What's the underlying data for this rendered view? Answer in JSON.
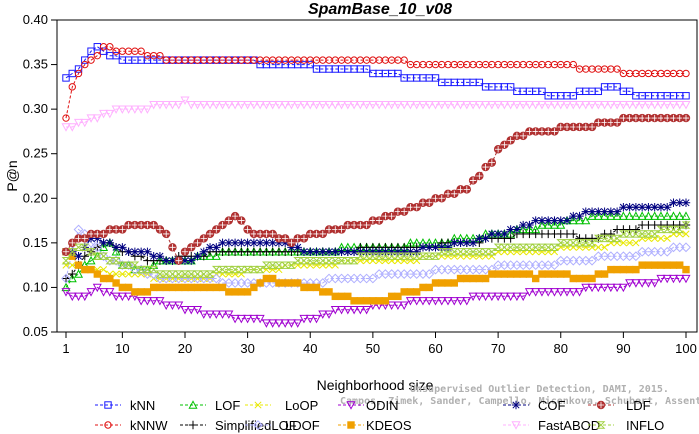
{
  "chart_data": {
    "type": "line",
    "title": "SpamBase_10_v08",
    "xlabel": "Neighborhood size",
    "ylabel": "P@n",
    "xlim": [
      1,
      100
    ],
    "ylim": [
      0.05,
      0.4
    ],
    "xticks": [
      1,
      10,
      20,
      30,
      40,
      50,
      60,
      70,
      80,
      90,
      100
    ],
    "yticks": [
      0.05,
      0.1,
      0.15,
      0.2,
      0.25,
      0.3,
      0.35,
      0.4
    ],
    "ytick_labels": [
      "0.05",
      "0.10",
      "0.15",
      "0.20",
      "0.25",
      "0.30",
      "0.35",
      "0.40"
    ],
    "grid": false,
    "legend_position": "bottom",
    "credit": [
      "Campos, Zimek, Sander, Campello, Micenkova, Schubert, Assent, Houle",
      "Unsupervised Outlier Detection, DAMI, 2015."
    ],
    "series": [
      {
        "name": "kNN",
        "color": "#1a1aff",
        "marker": "square",
        "points": [
          [
            1,
            0.333
          ],
          [
            3,
            0.345
          ],
          [
            5,
            0.363
          ],
          [
            6,
            0.371
          ],
          [
            8,
            0.362
          ],
          [
            10,
            0.357
          ],
          [
            15,
            0.354
          ],
          [
            20,
            0.353
          ],
          [
            30,
            0.353
          ],
          [
            35,
            0.351
          ],
          [
            40,
            0.348
          ],
          [
            45,
            0.345
          ],
          [
            50,
            0.342
          ],
          [
            55,
            0.337
          ],
          [
            60,
            0.333
          ],
          [
            65,
            0.329
          ],
          [
            70,
            0.326
          ],
          [
            75,
            0.318
          ],
          [
            80,
            0.317
          ],
          [
            85,
            0.318
          ],
          [
            88,
            0.325
          ],
          [
            90,
            0.322
          ],
          [
            93,
            0.315
          ],
          [
            97,
            0.316
          ],
          [
            100,
            0.314
          ]
        ]
      },
      {
        "name": "kNNW",
        "color": "#e01010",
        "marker": "circle",
        "points": [
          [
            1,
            0.288
          ],
          [
            2,
            0.327
          ],
          [
            4,
            0.35
          ],
          [
            6,
            0.36
          ],
          [
            7,
            0.368
          ],
          [
            10,
            0.367
          ],
          [
            13,
            0.364
          ],
          [
            15,
            0.359
          ],
          [
            20,
            0.355
          ],
          [
            30,
            0.355
          ],
          [
            40,
            0.354
          ],
          [
            50,
            0.353
          ],
          [
            60,
            0.352
          ],
          [
            70,
            0.35
          ],
          [
            80,
            0.348
          ],
          [
            88,
            0.346
          ],
          [
            90,
            0.341
          ],
          [
            100,
            0.34
          ]
        ]
      },
      {
        "name": "LOF",
        "color": "#00c000",
        "marker": "triangle",
        "points": [
          [
            1,
            0.1
          ],
          [
            3,
            0.115
          ],
          [
            5,
            0.13
          ],
          [
            8,
            0.15
          ],
          [
            10,
            0.125
          ],
          [
            13,
            0.118
          ],
          [
            16,
            0.128
          ],
          [
            20,
            0.13
          ],
          [
            25,
            0.137
          ],
          [
            30,
            0.14
          ],
          [
            35,
            0.138
          ],
          [
            40,
            0.14
          ],
          [
            45,
            0.143
          ],
          [
            50,
            0.145
          ],
          [
            55,
            0.147
          ],
          [
            60,
            0.15
          ],
          [
            65,
            0.155
          ],
          [
            70,
            0.16
          ],
          [
            75,
            0.165
          ],
          [
            80,
            0.172
          ],
          [
            85,
            0.178
          ],
          [
            90,
            0.18
          ],
          [
            95,
            0.18
          ],
          [
            100,
            0.182
          ]
        ]
      },
      {
        "name": "SimplifiedLOF",
        "color": "#000000",
        "marker": "plus",
        "points": [
          [
            1,
            0.108
          ],
          [
            3,
            0.125
          ],
          [
            5,
            0.14
          ],
          [
            7,
            0.152
          ],
          [
            9,
            0.145
          ],
          [
            12,
            0.135
          ],
          [
            15,
            0.128
          ],
          [
            18,
            0.132
          ],
          [
            22,
            0.135
          ],
          [
            25,
            0.14
          ],
          [
            30,
            0.138
          ],
          [
            35,
            0.138
          ],
          [
            40,
            0.14
          ],
          [
            45,
            0.142
          ],
          [
            50,
            0.143
          ],
          [
            55,
            0.145
          ],
          [
            60,
            0.147
          ],
          [
            65,
            0.15
          ],
          [
            70,
            0.155
          ],
          [
            75,
            0.16
          ],
          [
            80,
            0.16
          ],
          [
            85,
            0.155
          ],
          [
            90,
            0.165
          ],
          [
            95,
            0.17
          ],
          [
            100,
            0.172
          ]
        ]
      },
      {
        "name": "LoOP",
        "color": "#e8e800",
        "marker": "x",
        "points": [
          [
            1,
            0.125
          ],
          [
            5,
            0.12
          ],
          [
            10,
            0.115
          ],
          [
            15,
            0.112
          ],
          [
            20,
            0.11
          ],
          [
            25,
            0.113
          ],
          [
            30,
            0.118
          ],
          [
            35,
            0.122
          ],
          [
            40,
            0.125
          ],
          [
            45,
            0.128
          ],
          [
            50,
            0.13
          ],
          [
            55,
            0.132
          ],
          [
            60,
            0.133
          ],
          [
            65,
            0.135
          ],
          [
            70,
            0.138
          ],
          [
            75,
            0.14
          ],
          [
            80,
            0.143
          ],
          [
            85,
            0.145
          ],
          [
            90,
            0.15
          ],
          [
            95,
            0.155
          ],
          [
            100,
            0.16
          ]
        ]
      },
      {
        "name": "LDOF",
        "color": "#b0b0ff",
        "marker": "diamond",
        "points": [
          [
            1,
            0.11
          ],
          [
            3,
            0.165
          ],
          [
            5,
            0.15
          ],
          [
            8,
            0.13
          ],
          [
            12,
            0.12
          ],
          [
            16,
            0.112
          ],
          [
            20,
            0.11
          ],
          [
            25,
            0.108
          ],
          [
            30,
            0.105
          ],
          [
            35,
            0.103
          ],
          [
            40,
            0.105
          ],
          [
            45,
            0.11
          ],
          [
            50,
            0.112
          ],
          [
            55,
            0.115
          ],
          [
            60,
            0.118
          ],
          [
            65,
            0.12
          ],
          [
            70,
            0.123
          ],
          [
            75,
            0.125
          ],
          [
            80,
            0.128
          ],
          [
            85,
            0.132
          ],
          [
            90,
            0.135
          ],
          [
            95,
            0.14
          ],
          [
            100,
            0.145
          ]
        ]
      },
      {
        "name": "ODIN",
        "color": "#a000d0",
        "marker": "triangle-down",
        "points": [
          [
            1,
            0.095
          ],
          [
            3,
            0.088
          ],
          [
            6,
            0.098
          ],
          [
            8,
            0.093
          ],
          [
            12,
            0.088
          ],
          [
            15,
            0.085
          ],
          [
            18,
            0.08
          ],
          [
            20,
            0.075
          ],
          [
            25,
            0.07
          ],
          [
            30,
            0.065
          ],
          [
            35,
            0.06
          ],
          [
            38,
            0.062
          ],
          [
            42,
            0.068
          ],
          [
            45,
            0.075
          ],
          [
            50,
            0.078
          ],
          [
            55,
            0.082
          ],
          [
            60,
            0.085
          ],
          [
            65,
            0.087
          ],
          [
            70,
            0.09
          ],
          [
            75,
            0.093
          ],
          [
            80,
            0.096
          ],
          [
            85,
            0.098
          ],
          [
            90,
            0.102
          ],
          [
            95,
            0.107
          ],
          [
            100,
            0.111
          ]
        ]
      },
      {
        "name": "KDEOS",
        "color": "#f0a000",
        "marker": "square-filled",
        "points": [
          [
            1,
            0.14
          ],
          [
            3,
            0.125
          ],
          [
            6,
            0.115
          ],
          [
            9,
            0.105
          ],
          [
            12,
            0.095
          ],
          [
            15,
            0.098
          ],
          [
            18,
            0.102
          ],
          [
            22,
            0.1
          ],
          [
            26,
            0.098
          ],
          [
            30,
            0.094
          ],
          [
            33,
            0.11
          ],
          [
            36,
            0.105
          ],
          [
            40,
            0.1
          ],
          [
            44,
            0.092
          ],
          [
            48,
            0.085
          ],
          [
            52,
            0.085
          ],
          [
            56,
            0.095
          ],
          [
            60,
            0.103
          ],
          [
            64,
            0.108
          ],
          [
            68,
            0.112
          ],
          [
            72,
            0.115
          ],
          [
            76,
            0.112
          ],
          [
            80,
            0.115
          ],
          [
            84,
            0.108
          ],
          [
            88,
            0.118
          ],
          [
            92,
            0.122
          ],
          [
            96,
            0.125
          ],
          [
            100,
            0.122
          ]
        ]
      },
      {
        "name": "COF",
        "color": "#000080",
        "marker": "asterisk",
        "points": [
          [
            1,
            0.142
          ],
          [
            3,
            0.135
          ],
          [
            5,
            0.155
          ],
          [
            8,
            0.148
          ],
          [
            11,
            0.14
          ],
          [
            14,
            0.138
          ],
          [
            17,
            0.13
          ],
          [
            20,
            0.128
          ],
          [
            23,
            0.14
          ],
          [
            26,
            0.148
          ],
          [
            29,
            0.152
          ],
          [
            32,
            0.15
          ],
          [
            36,
            0.148
          ],
          [
            40,
            0.14
          ],
          [
            45,
            0.138
          ],
          [
            50,
            0.138
          ],
          [
            55,
            0.14
          ],
          [
            60,
            0.145
          ],
          [
            65,
            0.15
          ],
          [
            70,
            0.16
          ],
          [
            75,
            0.172
          ],
          [
            80,
            0.175
          ],
          [
            85,
            0.185
          ],
          [
            90,
            0.188
          ],
          [
            95,
            0.19
          ],
          [
            100,
            0.195
          ]
        ]
      },
      {
        "name": "FastABOD",
        "color": "#ffb0ff",
        "marker": "triangle-down-open",
        "points": [
          [
            1,
            0.278
          ],
          [
            3,
            0.283
          ],
          [
            5,
            0.29
          ],
          [
            8,
            0.295
          ],
          [
            10,
            0.3
          ],
          [
            14,
            0.302
          ],
          [
            18,
            0.305
          ],
          [
            20,
            0.308
          ],
          [
            25,
            0.305
          ],
          [
            30,
            0.307
          ],
          [
            40,
            0.307
          ],
          [
            50,
            0.307
          ],
          [
            60,
            0.307
          ],
          [
            70,
            0.307
          ],
          [
            80,
            0.307
          ],
          [
            90,
            0.307
          ],
          [
            100,
            0.307
          ]
        ]
      },
      {
        "name": "LDF",
        "color": "#b03030",
        "marker": "circle-plus",
        "points": [
          [
            1,
            0.14
          ],
          [
            3,
            0.155
          ],
          [
            6,
            0.16
          ],
          [
            9,
            0.165
          ],
          [
            12,
            0.172
          ],
          [
            15,
            0.172
          ],
          [
            17,
            0.16
          ],
          [
            19,
            0.13
          ],
          [
            21,
            0.145
          ],
          [
            23,
            0.155
          ],
          [
            26,
            0.172
          ],
          [
            28,
            0.178
          ],
          [
            31,
            0.162
          ],
          [
            34,
            0.158
          ],
          [
            37,
            0.15
          ],
          [
            40,
            0.158
          ],
          [
            44,
            0.165
          ],
          [
            48,
            0.17
          ],
          [
            52,
            0.178
          ],
          [
            56,
            0.188
          ],
          [
            59,
            0.195
          ],
          [
            62,
            0.203
          ],
          [
            65,
            0.21
          ],
          [
            67,
            0.225
          ],
          [
            69,
            0.242
          ],
          [
            70,
            0.255
          ],
          [
            72,
            0.265
          ],
          [
            74,
            0.27
          ],
          [
            76,
            0.275
          ],
          [
            80,
            0.278
          ],
          [
            84,
            0.28
          ],
          [
            87,
            0.285
          ],
          [
            90,
            0.288
          ],
          [
            94,
            0.292
          ],
          [
            100,
            0.29
          ]
        ]
      },
      {
        "name": "INFLO",
        "color": "#a0d040",
        "marker": "hourglass",
        "points": [
          [
            1,
            0.13
          ],
          [
            3,
            0.145
          ],
          [
            5,
            0.14
          ],
          [
            8,
            0.132
          ],
          [
            11,
            0.125
          ],
          [
            15,
            0.118
          ],
          [
            20,
            0.115
          ],
          [
            25,
            0.118
          ],
          [
            30,
            0.12
          ],
          [
            35,
            0.125
          ],
          [
            40,
            0.13
          ],
          [
            45,
            0.132
          ],
          [
            50,
            0.133
          ],
          [
            55,
            0.135
          ],
          [
            60,
            0.137
          ],
          [
            65,
            0.14
          ],
          [
            70,
            0.143
          ],
          [
            75,
            0.145
          ],
          [
            80,
            0.148
          ],
          [
            85,
            0.152
          ],
          [
            90,
            0.158
          ],
          [
            95,
            0.162
          ],
          [
            100,
            0.168
          ]
        ]
      }
    ]
  }
}
